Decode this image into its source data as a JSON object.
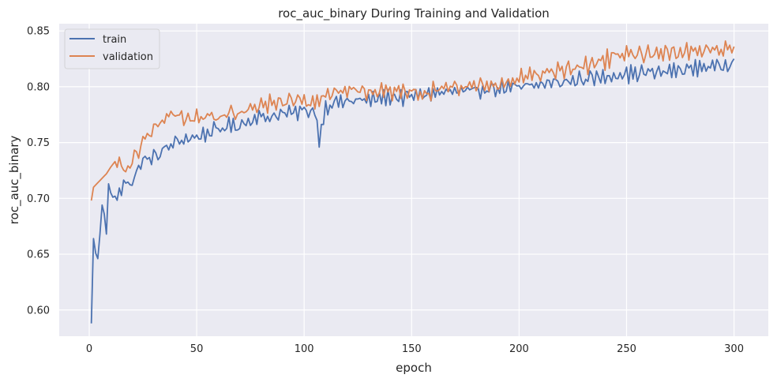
{
  "chart_data": {
    "type": "line",
    "title": "roc_auc_binary During Training and Validation",
    "xlabel": "epoch",
    "ylabel": "roc_auc_binary",
    "xlim": [
      -13.95,
      315.95
    ],
    "ylim": [
      0.5765,
      0.8565
    ],
    "xticks": [
      0,
      50,
      100,
      150,
      200,
      250,
      300
    ],
    "yticks": [
      0.6,
      0.65,
      0.7,
      0.75,
      0.8,
      0.85
    ],
    "xtick_labels": [
      "0",
      "50",
      "100",
      "150",
      "200",
      "250",
      "300"
    ],
    "ytick_labels": [
      "0.60",
      "0.65",
      "0.70",
      "0.75",
      "0.80",
      "0.85"
    ],
    "grid": true,
    "legend_position": "upper-left",
    "colors": {
      "plot_background": "#eaeaf2",
      "grid": "#ffffff",
      "train": "#4c72b0",
      "validation": "#dd8452"
    },
    "series": [
      {
        "name": "train",
        "anchors": [
          [
            1,
            0.588
          ],
          [
            2,
            0.664
          ],
          [
            3,
            0.651
          ],
          [
            4,
            0.646
          ],
          [
            5,
            0.668
          ],
          [
            6,
            0.694
          ],
          [
            7,
            0.686
          ],
          [
            8,
            0.668
          ],
          [
            9,
            0.713
          ],
          [
            10,
            0.705
          ],
          [
            11,
            0.701
          ],
          [
            13,
            0.703
          ],
          [
            15,
            0.706
          ],
          [
            17,
            0.718
          ],
          [
            20,
            0.712
          ],
          [
            24,
            0.733
          ],
          [
            30,
            0.737
          ],
          [
            34,
            0.742
          ],
          [
            38,
            0.748
          ],
          [
            42,
            0.752
          ],
          [
            48,
            0.754
          ],
          [
            55,
            0.758
          ],
          [
            60,
            0.762
          ],
          [
            65,
            0.765
          ],
          [
            70,
            0.765
          ],
          [
            75,
            0.77
          ],
          [
            80,
            0.773
          ],
          [
            85,
            0.773
          ],
          [
            90,
            0.776
          ],
          [
            95,
            0.777
          ],
          [
            100,
            0.779
          ],
          [
            105,
            0.778
          ],
          [
            107,
            0.753
          ],
          [
            110,
            0.781
          ],
          [
            115,
            0.786
          ],
          [
            120,
            0.787
          ],
          [
            125,
            0.788
          ],
          [
            130,
            0.788
          ],
          [
            135,
            0.79
          ],
          [
            140,
            0.791
          ],
          [
            145,
            0.79
          ],
          [
            150,
            0.792
          ],
          [
            155,
            0.793
          ],
          [
            160,
            0.794
          ],
          [
            165,
            0.795
          ],
          [
            170,
            0.796
          ],
          [
            175,
            0.796
          ],
          [
            180,
            0.797
          ],
          [
            185,
            0.798
          ],
          [
            190,
            0.798
          ],
          [
            195,
            0.799
          ],
          [
            200,
            0.8
          ],
          [
            205,
            0.801
          ],
          [
            210,
            0.802
          ],
          [
            215,
            0.804
          ],
          [
            220,
            0.804
          ],
          [
            225,
            0.805
          ],
          [
            230,
            0.807
          ],
          [
            235,
            0.808
          ],
          [
            240,
            0.809
          ],
          [
            245,
            0.81
          ],
          [
            250,
            0.811
          ],
          [
            255,
            0.812
          ],
          [
            260,
            0.813
          ],
          [
            265,
            0.813
          ],
          [
            270,
            0.814
          ],
          [
            275,
            0.815
          ],
          [
            280,
            0.816
          ],
          [
            285,
            0.818
          ],
          [
            290,
            0.818
          ],
          [
            295,
            0.819
          ],
          [
            300,
            0.82
          ]
        ],
        "noise_amplitude": 0.01,
        "end_value": 0.825
      },
      {
        "name": "validation",
        "anchors": [
          [
            1,
            0.698
          ],
          [
            2,
            0.71
          ],
          [
            4,
            0.714
          ],
          [
            6,
            0.718
          ],
          [
            8,
            0.722
          ],
          [
            10,
            0.728
          ],
          [
            12,
            0.733
          ],
          [
            15,
            0.727
          ],
          [
            18,
            0.726
          ],
          [
            20,
            0.733
          ],
          [
            24,
            0.748
          ],
          [
            28,
            0.758
          ],
          [
            32,
            0.765
          ],
          [
            36,
            0.774
          ],
          [
            40,
            0.777
          ],
          [
            45,
            0.77
          ],
          [
            50,
            0.773
          ],
          [
            55,
            0.774
          ],
          [
            60,
            0.773
          ],
          [
            65,
            0.777
          ],
          [
            70,
            0.777
          ],
          [
            75,
            0.78
          ],
          [
            80,
            0.783
          ],
          [
            85,
            0.785
          ],
          [
            90,
            0.787
          ],
          [
            95,
            0.787
          ],
          [
            100,
            0.788
          ],
          [
            105,
            0.785
          ],
          [
            110,
            0.792
          ],
          [
            115,
            0.795
          ],
          [
            120,
            0.796
          ],
          [
            125,
            0.796
          ],
          [
            130,
            0.796
          ],
          [
            135,
            0.796
          ],
          [
            140,
            0.796
          ],
          [
            145,
            0.796
          ],
          [
            150,
            0.796
          ],
          [
            155,
            0.79
          ],
          [
            160,
            0.796
          ],
          [
            165,
            0.799
          ],
          [
            170,
            0.8
          ],
          [
            175,
            0.8
          ],
          [
            180,
            0.801
          ],
          [
            185,
            0.802
          ],
          [
            190,
            0.801
          ],
          [
            195,
            0.805
          ],
          [
            200,
            0.808
          ],
          [
            205,
            0.81
          ],
          [
            210,
            0.811
          ],
          [
            215,
            0.813
          ],
          [
            220,
            0.815
          ],
          [
            225,
            0.817
          ],
          [
            230,
            0.819
          ],
          [
            235,
            0.821
          ],
          [
            240,
            0.824
          ],
          [
            245,
            0.827
          ],
          [
            250,
            0.829
          ],
          [
            255,
            0.829
          ],
          [
            260,
            0.83
          ],
          [
            265,
            0.83
          ],
          [
            270,
            0.831
          ],
          [
            275,
            0.831
          ],
          [
            280,
            0.832
          ],
          [
            285,
            0.833
          ],
          [
            290,
            0.833
          ],
          [
            295,
            0.833
          ],
          [
            300,
            0.834
          ]
        ],
        "noise_amplitude": 0.011,
        "end_value": 0.836
      }
    ]
  }
}
